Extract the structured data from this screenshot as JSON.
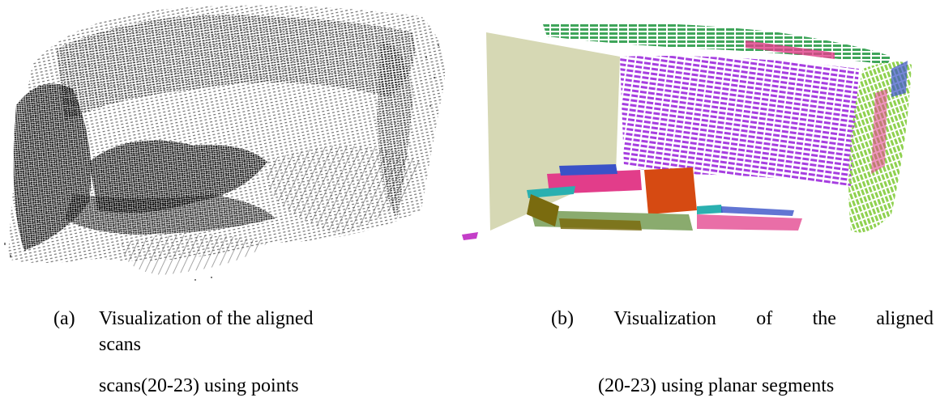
{
  "figure_a": {
    "label": "(a)",
    "caption_line1": "Visualization of the aligned",
    "caption_line2": "scans",
    "caption_line3": "scans(20-23) using points"
  },
  "figure_b": {
    "label": "(b)",
    "caption_words": [
      "Visualization",
      "of",
      "the",
      "aligned"
    ],
    "caption_line2": "(20-23) using planar segments",
    "segment_colors": {
      "wall": "#d6d8b4",
      "ceiling_plane": "#a63ee0",
      "top_edge": "#3fa55a",
      "right_wall": "#8fd14f",
      "floor_object": "#d64a12",
      "floor_strip": "#8aab6e",
      "floor_dark": "#7a6b0f",
      "pink": "#e23d8a",
      "blue": "#3a52c8",
      "cyan": "#2ab0b0"
    }
  }
}
